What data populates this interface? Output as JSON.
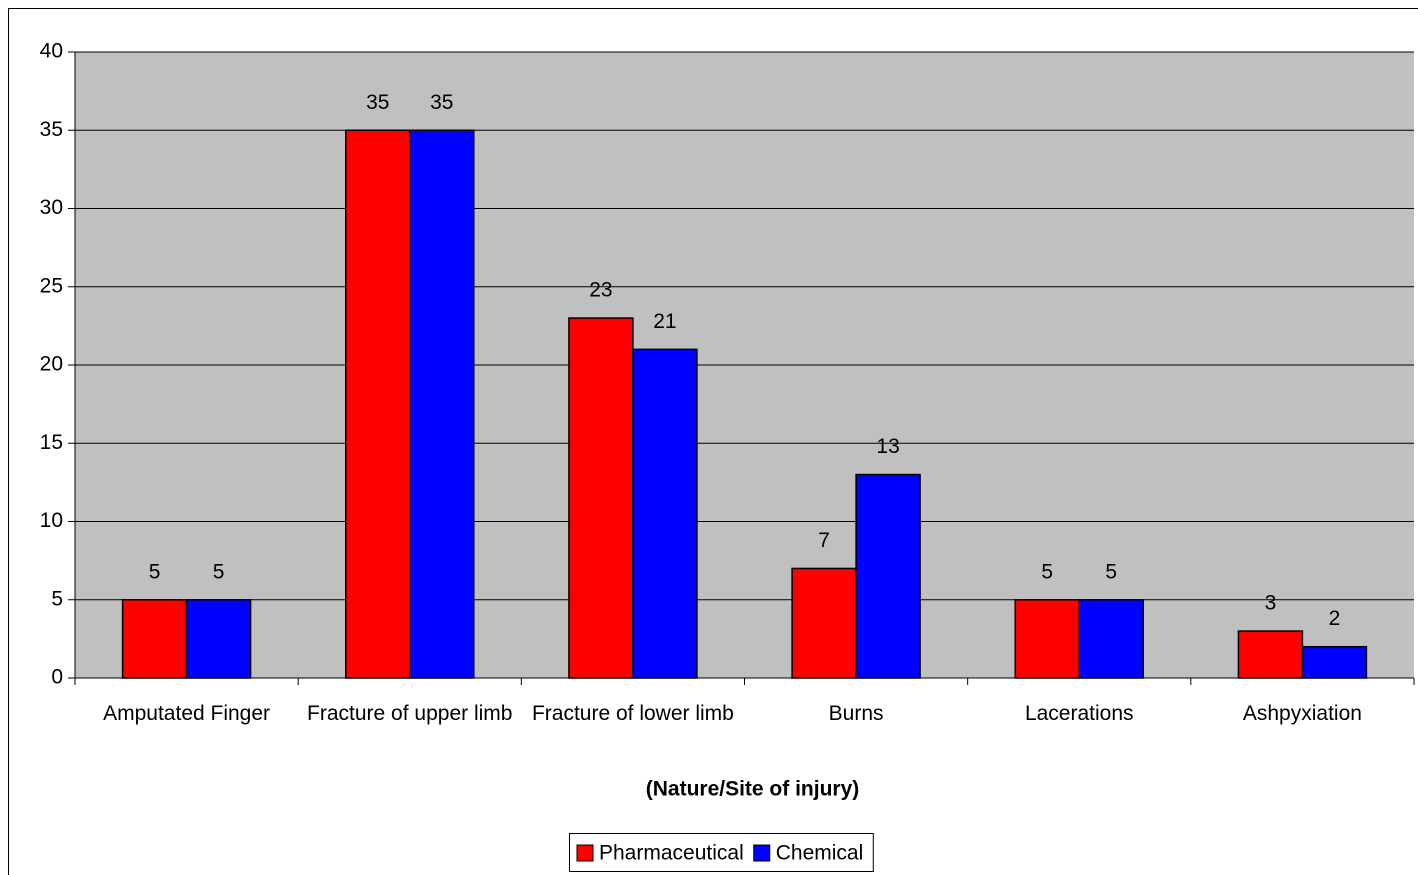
{
  "chart_data": {
    "type": "bar",
    "x_label": "(Nature/Site of injury)",
    "categories": [
      "Amputated Finger",
      "Fracture of upper limb",
      "Fracture of lower limb",
      "Burns",
      "Lacerations",
      "Ashpyxiation"
    ],
    "series": [
      {
        "name": "Pharmaceutical",
        "color": "#ff0000",
        "values": [
          5,
          35,
          23,
          7,
          5,
          3
        ]
      },
      {
        "name": "Chemical",
        "color": "#0000ff",
        "values": [
          5,
          35,
          21,
          13,
          5,
          2
        ]
      }
    ],
    "ylim": [
      0,
      40
    ],
    "yticks": [
      0,
      5,
      10,
      15,
      20,
      25,
      30,
      35,
      40
    ],
    "grid": true,
    "legend": "bottom"
  }
}
